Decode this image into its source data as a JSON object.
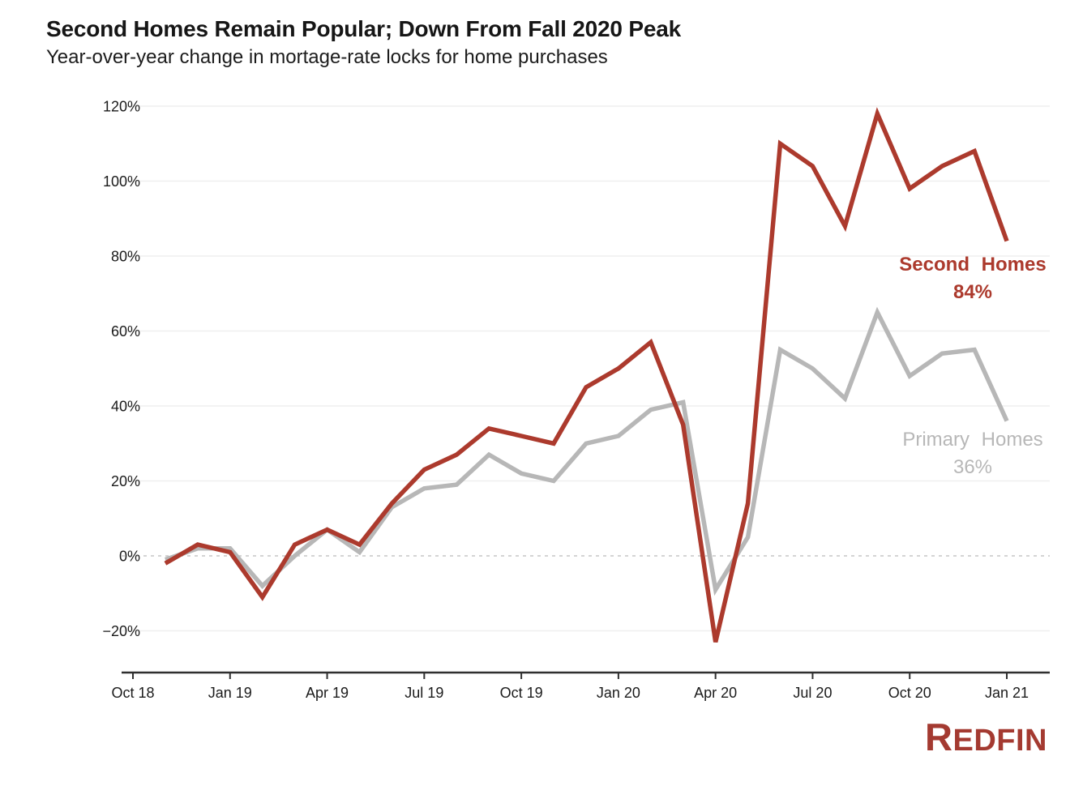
{
  "header": {
    "title": "Second Homes Remain Popular; Down From Fall 2020 Peak",
    "subtitle": "Year-over-year change in mortage-rate locks for home purchases"
  },
  "branding": {
    "logo_initial": "R",
    "logo_rest": "EDFIN",
    "logo_color": "#a43a31"
  },
  "chart_data": {
    "type": "line",
    "title": "Second Homes Remain Popular; Down From Fall 2020 Peak",
    "subtitle": "Year-over-year change in mortage-rate locks for home purchases",
    "unit": "%",
    "x": [
      "Nov 2018",
      "Dec 2018",
      "Jan 2019",
      "Feb 2019",
      "Mar 2019",
      "Apr 2019",
      "May 2019",
      "Jun 2019",
      "Jul 2019",
      "Aug 2019",
      "Sep 2019",
      "Oct 2019",
      "Nov 2019",
      "Dec 2019",
      "Jan 2020",
      "Feb 2020",
      "Mar 2020",
      "Apr 2020",
      "May 2020",
      "Jun 2020",
      "Jul 2020",
      "Aug 2020",
      "Sep 2020",
      "Oct 2020",
      "Nov 2020",
      "Dec 2020",
      "Jan 2021"
    ],
    "x_tick_labels": [
      "Oct 18",
      "Jan 19",
      "Apr 19",
      "Jul 19",
      "Oct 19",
      "Jan 20",
      "Apr 20",
      "Jul 20",
      "Oct 20",
      "Jan 21"
    ],
    "y_ticks": [
      120,
      100,
      80,
      60,
      40,
      20,
      0,
      -20
    ],
    "ylim": [
      -30,
      125
    ],
    "grid": "horizontal-light",
    "zero_line_style": "dashed",
    "legend_position": "inline-end-annotations",
    "axis_color": "#2f2f2f",
    "text_color": "#1b1b1b",
    "grid_color": "#efefef",
    "zero_line_color": "#c6c6c6",
    "series": [
      {
        "name": "Second Homes",
        "color": "#ac3a2d",
        "end_label": "Second Homes",
        "end_value_label": "84%",
        "values": [
          -2,
          3,
          1,
          -11,
          3,
          7,
          3,
          14,
          23,
          27,
          34,
          32,
          30,
          45,
          50,
          57,
          35,
          -23,
          14,
          110,
          104,
          88,
          118,
          98,
          104,
          108,
          84
        ]
      },
      {
        "name": "Primary Homes",
        "color": "#b7b7b7",
        "end_label": "Primary Homes",
        "end_value_label": "36%",
        "values": [
          -1,
          2,
          2,
          -8,
          0,
          7,
          1,
          13,
          18,
          19,
          27,
          22,
          20,
          30,
          32,
          39,
          41,
          -9,
          5,
          55,
          50,
          42,
          65,
          48,
          54,
          55,
          36
        ]
      }
    ]
  }
}
